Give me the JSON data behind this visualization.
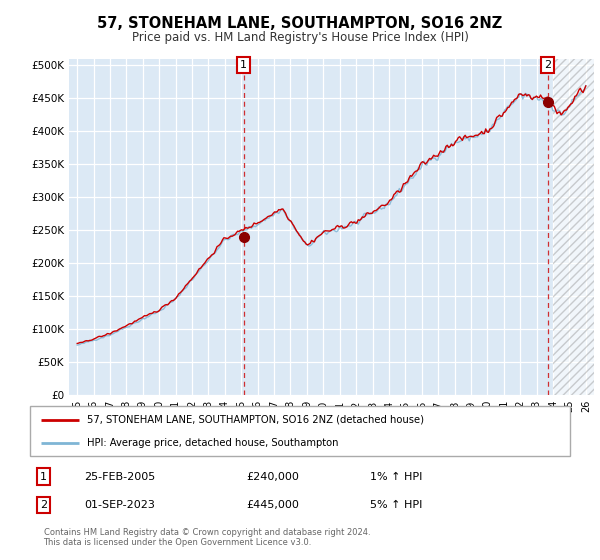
{
  "title": "57, STONEHAM LANE, SOUTHAMPTON, SO16 2NZ",
  "subtitle": "Price paid vs. HM Land Registry's House Price Index (HPI)",
  "plot_bg_color": "#dce9f5",
  "hpi_line_color": "#7fb5d5",
  "price_line_color": "#cc0000",
  "marker_color": "#8b0000",
  "transaction1_year": 2005.15,
  "transaction1_price": 240000,
  "transaction1_date": "25-FEB-2005",
  "transaction1_hpi_pct": "1% ↑ HPI",
  "transaction2_year": 2023.67,
  "transaction2_price": 445000,
  "transaction2_date": "01-SEP-2023",
  "transaction2_hpi_pct": "5% ↑ HPI",
  "legend_line1": "57, STONEHAM LANE, SOUTHAMPTON, SO16 2NZ (detached house)",
  "legend_line2": "HPI: Average price, detached house, Southampton",
  "footer": "Contains HM Land Registry data © Crown copyright and database right 2024.\nThis data is licensed under the Open Government Licence v3.0.",
  "xstart_year": 1995,
  "xend_year": 2026
}
